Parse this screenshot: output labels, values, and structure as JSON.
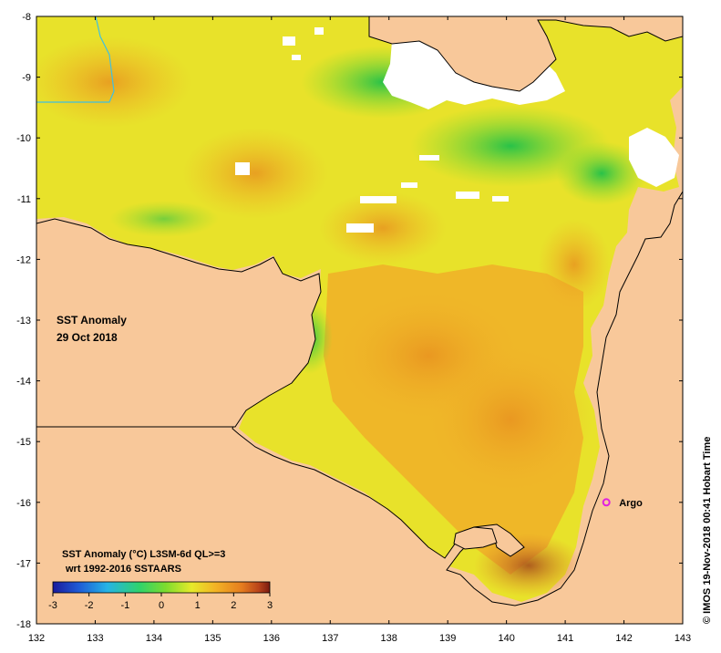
{
  "title": {
    "line1": "SST Anomaly",
    "line2": "29 Oct 2018"
  },
  "legend": {
    "line1": "SST Anomaly (°C) L3SM-6d QL>=3",
    "line2": "wrt 1992-2016 SSTAARS",
    "ticks": [
      "-3",
      "-2",
      "-1",
      "0",
      "1",
      "2",
      "3"
    ],
    "min": -3,
    "max": 3,
    "colors": [
      "#1a1a9c",
      "#1e5bd6",
      "#26b3e6",
      "#2fd36b",
      "#7ddc2e",
      "#e6ea2a",
      "#f3b325",
      "#e57d1f",
      "#b8431a",
      "#7a1a10"
    ]
  },
  "axes": {
    "x_ticks": [
      "132",
      "133",
      "134",
      "135",
      "136",
      "137",
      "138",
      "139",
      "140",
      "141",
      "142",
      "143"
    ],
    "y_ticks": [
      "-8",
      "-9",
      "-10",
      "-11",
      "-12",
      "-13",
      "-14",
      "-15",
      "-16",
      "-17",
      "-18"
    ],
    "lon_range": [
      132,
      143
    ],
    "lat_range": [
      -18,
      -8
    ]
  },
  "marker": {
    "label": "Argo",
    "lon": 141.7,
    "lat": -16.0,
    "color": "#e020e0"
  },
  "credit": "© IMOS 19-Nov-2018 00:41 Hobart Time",
  "colors": {
    "land": "#f8c89a",
    "coast": "#000000",
    "nodata": "#ffffff",
    "boundary": "#40c0e0"
  }
}
